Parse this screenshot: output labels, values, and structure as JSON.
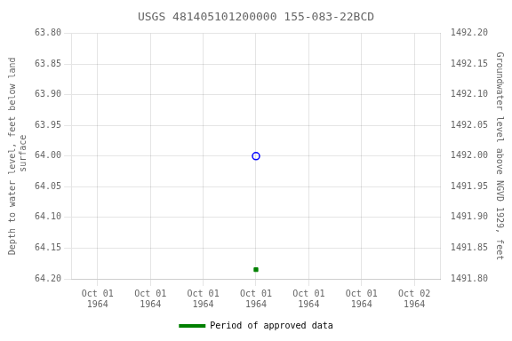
{
  "chart_data": {
    "type": "scatter",
    "title": "USGS 481405101200000 155-083-22BCD",
    "y_label": "Depth to water level, feet below land\n surface",
    "y2_label": "Groundwater level above NGVD 1929, feet",
    "categories": [
      "Oct 01\n1964",
      "Oct 01\n1964",
      "Oct 01\n1964",
      "Oct 01\n1964",
      "Oct 01\n1964",
      "Oct 01\n1964",
      "Oct 02\n1964"
    ],
    "series": [
      {
        "color": "#0000ff",
        "marker": "circle",
        "values": [
          null,
          null,
          null,
          64.0,
          null,
          null,
          null
        ]
      },
      {
        "name": "Period of approved data",
        "color": "#008000",
        "marker": "square",
        "values": [
          null,
          null,
          null,
          64.185,
          null,
          null,
          null
        ]
      }
    ],
    "ylim": [
      64.2,
      63.8
    ],
    "yticks": [
      {
        "value": 63.8,
        "label": "63.80"
      },
      {
        "value": 63.85,
        "label": "63.85"
      },
      {
        "value": 63.9,
        "label": "63.90"
      },
      {
        "value": 63.95,
        "label": "63.95"
      },
      {
        "value": 64.0,
        "label": "64.00"
      },
      {
        "value": 64.05,
        "label": "64.05"
      },
      {
        "value": 64.1,
        "label": "64.10"
      },
      {
        "value": 64.15,
        "label": "64.15"
      },
      {
        "value": 64.2,
        "label": "64.20"
      }
    ],
    "y2lim": [
      1491.8,
      1492.2
    ],
    "y2ticks": [
      {
        "value": 1491.8,
        "label": "1491.80"
      },
      {
        "value": 1491.85,
        "label": "1491.85"
      },
      {
        "value": 1491.9,
        "label": "1491.90"
      },
      {
        "value": 1491.95,
        "label": "1491.95"
      },
      {
        "value": 1492.0,
        "label": "1492.00"
      },
      {
        "value": 1492.05,
        "label": "1492.05"
      },
      {
        "value": 1492.1,
        "label": "1492.10"
      },
      {
        "value": 1492.15,
        "label": "1492.15"
      },
      {
        "value": 1492.2,
        "label": "1492.20"
      }
    ],
    "grid": true,
    "legend": "bottom"
  }
}
